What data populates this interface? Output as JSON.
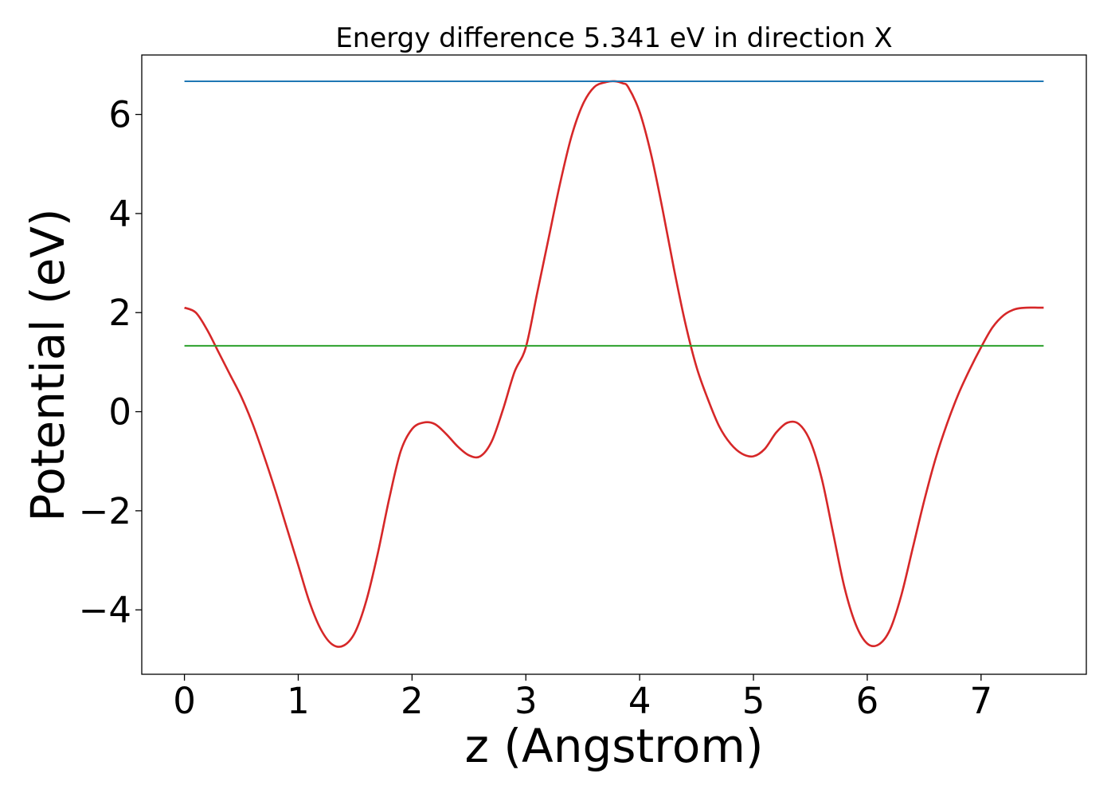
{
  "chart_data": {
    "type": "line",
    "title": "Energy difference 5.341 eV in direction X",
    "xlabel": "z (Angstrom)",
    "ylabel": "Potential (eV)",
    "xlim": [
      -0.375,
      7.925
    ],
    "ylim": [
      -5.3,
      7.2
    ],
    "xticks": [
      0,
      1,
      2,
      3,
      4,
      5,
      6,
      7
    ],
    "yticks": [
      -4,
      -2,
      0,
      2,
      4,
      6
    ],
    "ytick_labels": [
      "−4",
      "−2",
      "0",
      "2",
      "4",
      "6"
    ],
    "grid": false,
    "legend": "none",
    "series": [
      {
        "kind": "curve",
        "color": "#d62728",
        "x": [
          0.0,
          0.1,
          0.2,
          0.3,
          0.4,
          0.5,
          0.6,
          0.7,
          0.8,
          0.9,
          1.0,
          1.1,
          1.2,
          1.3,
          1.4,
          1.5,
          1.6,
          1.7,
          1.8,
          1.9,
          2.0,
          2.1,
          2.2,
          2.3,
          2.4,
          2.5,
          2.6,
          2.7,
          2.8,
          2.9,
          3.0,
          3.1,
          3.2,
          3.3,
          3.4,
          3.5,
          3.6,
          3.7,
          3.78,
          3.85,
          3.9,
          4.0,
          4.1,
          4.2,
          4.3,
          4.4,
          4.5,
          4.6,
          4.7,
          4.8,
          4.9,
          5.0,
          5.1,
          5.2,
          5.3,
          5.4,
          5.5,
          5.6,
          5.7,
          5.8,
          5.9,
          6.0,
          6.1,
          6.2,
          6.3,
          6.4,
          6.5,
          6.6,
          6.7,
          6.8,
          6.9,
          7.0,
          7.1,
          7.2,
          7.3,
          7.4,
          7.5,
          7.55
        ],
        "y": [
          2.1,
          2.0,
          1.65,
          1.2,
          0.75,
          0.3,
          -0.25,
          -0.9,
          -1.6,
          -2.35,
          -3.1,
          -3.85,
          -4.4,
          -4.7,
          -4.72,
          -4.45,
          -3.8,
          -2.85,
          -1.75,
          -0.8,
          -0.35,
          -0.22,
          -0.25,
          -0.45,
          -0.7,
          -0.88,
          -0.9,
          -0.6,
          0.05,
          0.8,
          1.3,
          2.4,
          3.5,
          4.6,
          5.55,
          6.2,
          6.55,
          6.65,
          6.67,
          6.63,
          6.55,
          6.05,
          5.2,
          4.1,
          2.9,
          1.8,
          0.9,
          0.25,
          -0.3,
          -0.65,
          -0.85,
          -0.9,
          -0.75,
          -0.42,
          -0.22,
          -0.25,
          -0.6,
          -1.35,
          -2.45,
          -3.55,
          -4.3,
          -4.68,
          -4.7,
          -4.4,
          -3.7,
          -2.75,
          -1.8,
          -0.95,
          -0.25,
          0.35,
          0.85,
          1.3,
          1.7,
          1.95,
          2.07,
          2.1,
          2.1,
          2.1
        ]
      },
      {
        "kind": "hline",
        "color": "#1f77b4",
        "y": 6.67,
        "x_range": [
          0.0,
          7.55
        ]
      },
      {
        "kind": "hline",
        "color": "#2ca02c",
        "y": 1.33,
        "x_range": [
          0.0,
          7.55
        ]
      }
    ]
  }
}
